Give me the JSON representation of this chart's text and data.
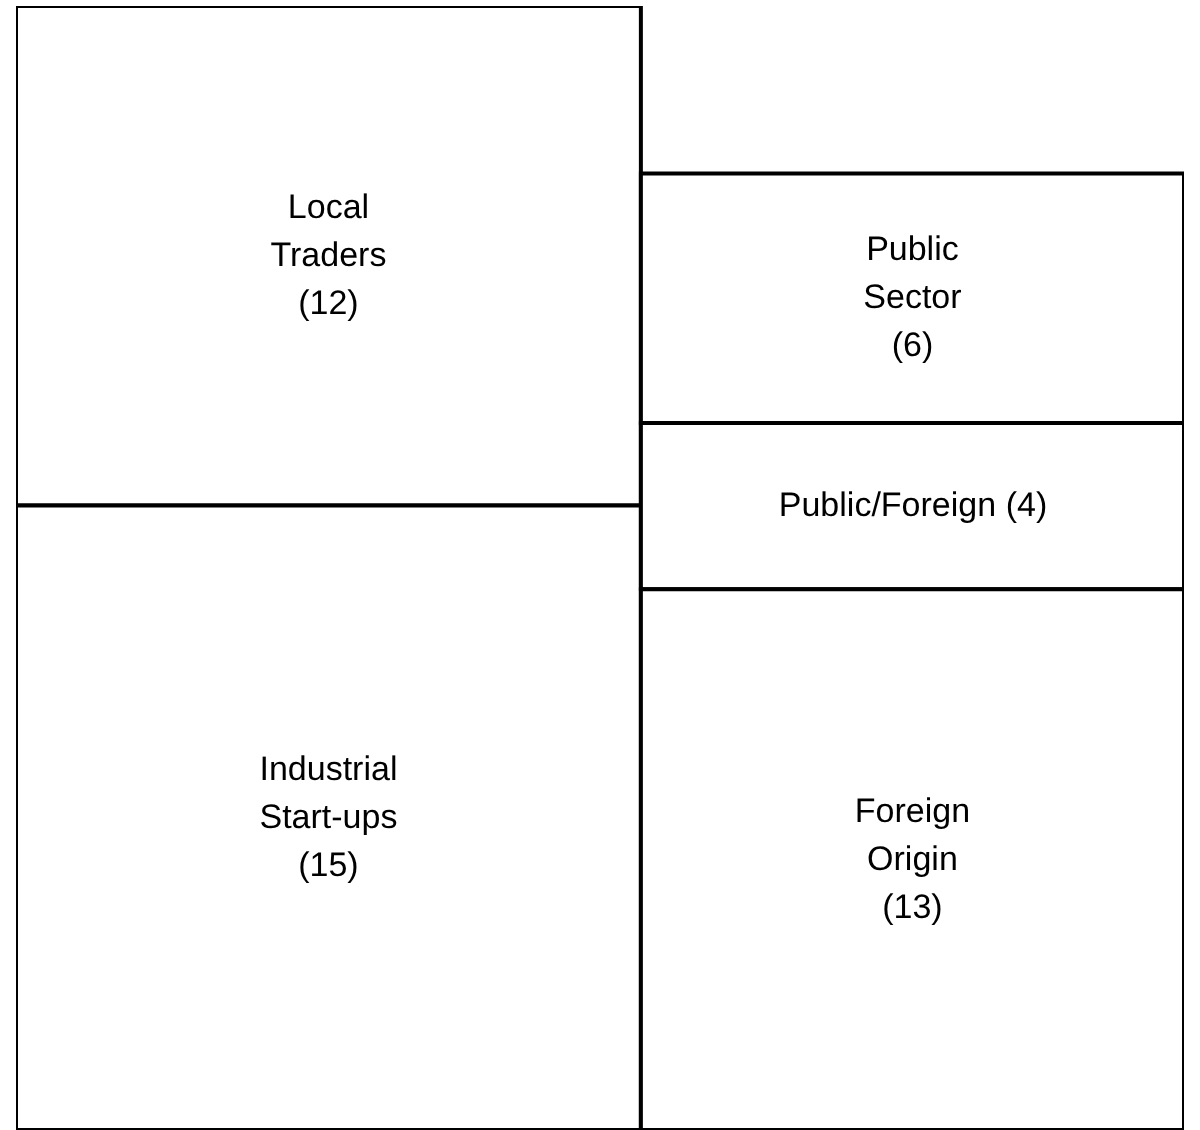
{
  "chart_data": {
    "type": "other",
    "categories": [
      "Local Traders",
      "Industrial Start-ups",
      "Public Sector",
      "Public/Foreign",
      "Foreign Origin"
    ],
    "values": [
      12,
      15,
      6,
      4,
      13
    ],
    "value_labels": [
      "(12)",
      "(15)",
      "(6)",
      "(4)",
      "(13)"
    ]
  }
}
